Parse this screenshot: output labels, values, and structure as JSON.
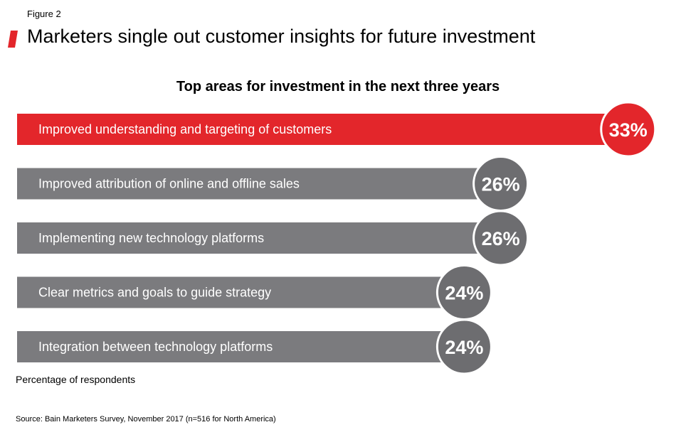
{
  "figure_label": "Figure 2",
  "main_title": "Marketers single out customer insights for future investment",
  "colors": {
    "accent": "#e3262b",
    "bar_default": "#7b7b7e",
    "bar_highlight": "#e3262b",
    "circle_default": "#6d6d70",
    "circle_highlight": "#e3262b",
    "circle_border": "#ffffff"
  },
  "chart_data": {
    "type": "bar",
    "orientation": "horizontal",
    "title": "Top areas for investment in the next three years",
    "categories": [
      "Improved understanding and targeting of customers",
      "Improved attribution of online and offline sales",
      "Implementing new technology platforms",
      "Clear metrics and goals to guide strategy",
      "Integration between technology platforms"
    ],
    "values": [
      33,
      26,
      26,
      24,
      24
    ],
    "value_labels": [
      "33%",
      "26%",
      "26%",
      "24%",
      "24%"
    ],
    "highlight_index": 0,
    "unit_label": "Percentage of respondents",
    "grid": false
  },
  "footnote": "Percentage of respondents",
  "source": "Source: Bain Marketers Survey, November 2017 (n=516 for North America)"
}
